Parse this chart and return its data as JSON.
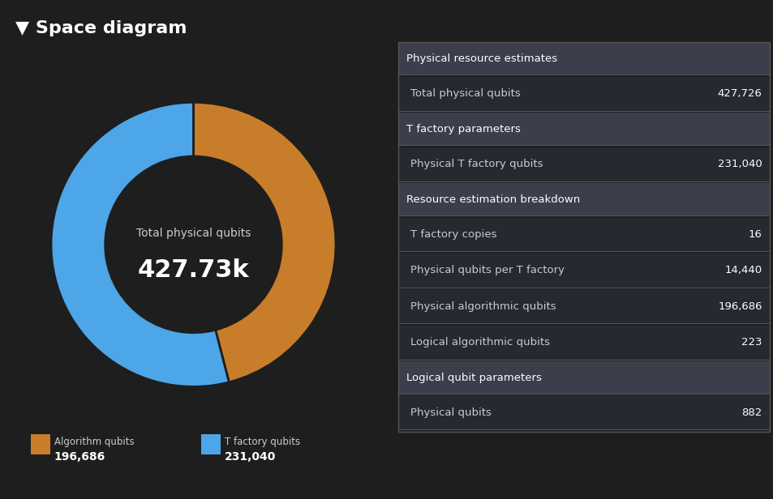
{
  "title": "▼ Space diagram",
  "bg_color": "#1e1e1e",
  "title_color": "#ffffff",
  "donut_values": [
    196686,
    231040
  ],
  "donut_colors": [
    "#c87d2a",
    "#4da6e8"
  ],
  "donut_center_label1": "Total physical qubits",
  "donut_center_value": "427.73k",
  "legend_labels": [
    "Algorithm qubits",
    "T factory qubits"
  ],
  "legend_values": [
    "196,686",
    "231,040"
  ],
  "table_header_color": "#3a3f4b",
  "table_bg_color": "#2b2f3a",
  "table_row_color": "#252930",
  "table_text_color": "#cccccc",
  "table_value_color": "#ffffff",
  "table_sections": [
    {
      "header": "Physical resource estimates",
      "rows": [
        {
          "label": "Total physical qubits",
          "value": "427,726"
        }
      ]
    },
    {
      "header": "T factory parameters",
      "rows": [
        {
          "label": "Physical T factory qubits",
          "value": "231,040"
        }
      ]
    },
    {
      "header": "Resource estimation breakdown",
      "rows": [
        {
          "label": "T factory copies",
          "value": "16"
        },
        {
          "label": "Physical qubits per T factory",
          "value": "14,440"
        },
        {
          "label": "Physical algorithmic qubits",
          "value": "196,686"
        },
        {
          "label": "Logical algorithmic qubits",
          "value": "223"
        }
      ]
    },
    {
      "header": "Logical qubit parameters",
      "rows": [
        {
          "label": "Physical qubits",
          "value": "882"
        }
      ]
    }
  ]
}
